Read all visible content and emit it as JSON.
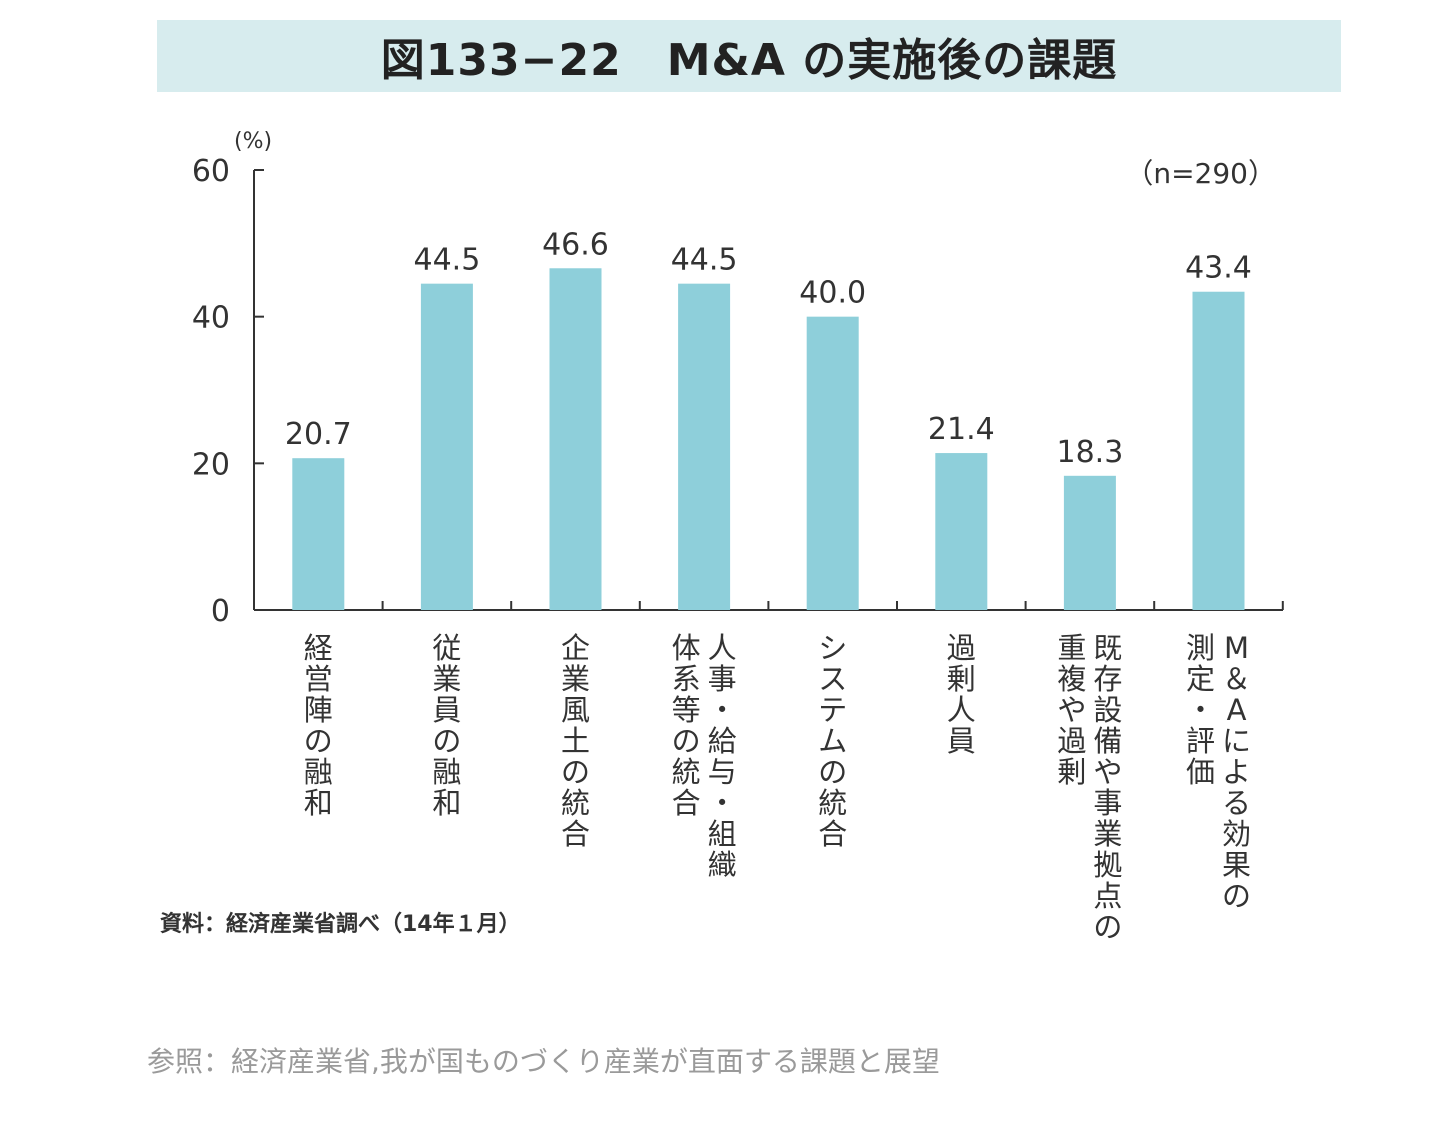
{
  "chart_data": {
    "type": "bar",
    "title": "図133−22　M&A の実施後の課題",
    "unit_label": "(%)",
    "sample_note": "（n=290）",
    "ylim": [
      0,
      60
    ],
    "yticks": [
      0,
      20,
      40,
      60
    ],
    "categories": [
      [
        "経営陣の融和"
      ],
      [
        "従業員の融和"
      ],
      [
        "企業風土の統合"
      ],
      [
        "人事・給与・組織",
        "体系等の統合"
      ],
      [
        "システムの統合"
      ],
      [
        "過剰人員"
      ],
      [
        "既存設備や事業拠点の",
        "重複や過剰"
      ],
      [
        "M＆Aによる効果の",
        "測定・評価"
      ]
    ],
    "values": [
      20.7,
      44.5,
      46.6,
      44.5,
      40.0,
      21.4,
      18.3,
      43.4
    ],
    "value_labels": [
      "20.7",
      "44.5",
      "46.6",
      "44.5",
      "40.0",
      "21.4",
      "18.3",
      "43.4"
    ],
    "xlabel": "",
    "ylabel": "(%)",
    "bar_color": "#8ecfda",
    "title_background": "#d7ecee"
  },
  "source_note": "資料：経済産業省調べ（14年１月）",
  "reference_note": "参照：経済産業省,我が国ものづくり産業が直面する課題と展望"
}
